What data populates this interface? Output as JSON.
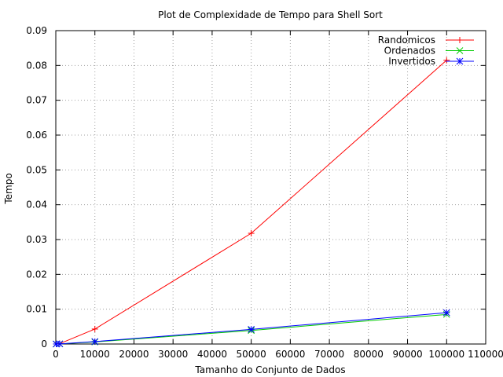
{
  "chart_data": {
    "type": "line",
    "title": "Plot de Complexidade de Tempo para Shell Sort",
    "xlabel": "Tamanho do Conjunto de Dados",
    "ylabel": "Tempo",
    "xlim": [
      0,
      110000
    ],
    "ylim": [
      0,
      0.09
    ],
    "x_ticks": [
      0,
      10000,
      20000,
      30000,
      40000,
      50000,
      60000,
      70000,
      80000,
      90000,
      100000,
      110000
    ],
    "x_tick_labels": [
      "0",
      "10000",
      "20000",
      "30000",
      "40000",
      "50000",
      "60000",
      "70000",
      "80000",
      "90000",
      "100000",
      "110000"
    ],
    "y_ticks": [
      0,
      0.01,
      0.02,
      0.03,
      0.04,
      0.05,
      0.06,
      0.07,
      0.08,
      0.09
    ],
    "y_tick_labels": [
      "0",
      "0.01",
      "0.02",
      "0.03",
      "0.04",
      "0.05",
      "0.06",
      "0.07",
      "0.08",
      "0.09"
    ],
    "grid": true,
    "legend_position": "top-right",
    "x": [
      100,
      1000,
      10000,
      50000,
      100000
    ],
    "series": [
      {
        "name": "Randomicos",
        "values": [
          1e-05,
          0.0001,
          0.0043,
          0.0318,
          0.0815
        ],
        "color": "#ff0000",
        "marker": "plus"
      },
      {
        "name": "Ordenados",
        "values": [
          5e-06,
          4e-05,
          0.0006,
          0.0039,
          0.0085
        ],
        "color": "#00cc00",
        "marker": "cross"
      },
      {
        "name": "Invertidos",
        "values": [
          5e-06,
          4e-05,
          0.0007,
          0.0042,
          0.009
        ],
        "color": "#0000ff",
        "marker": "star"
      }
    ]
  }
}
